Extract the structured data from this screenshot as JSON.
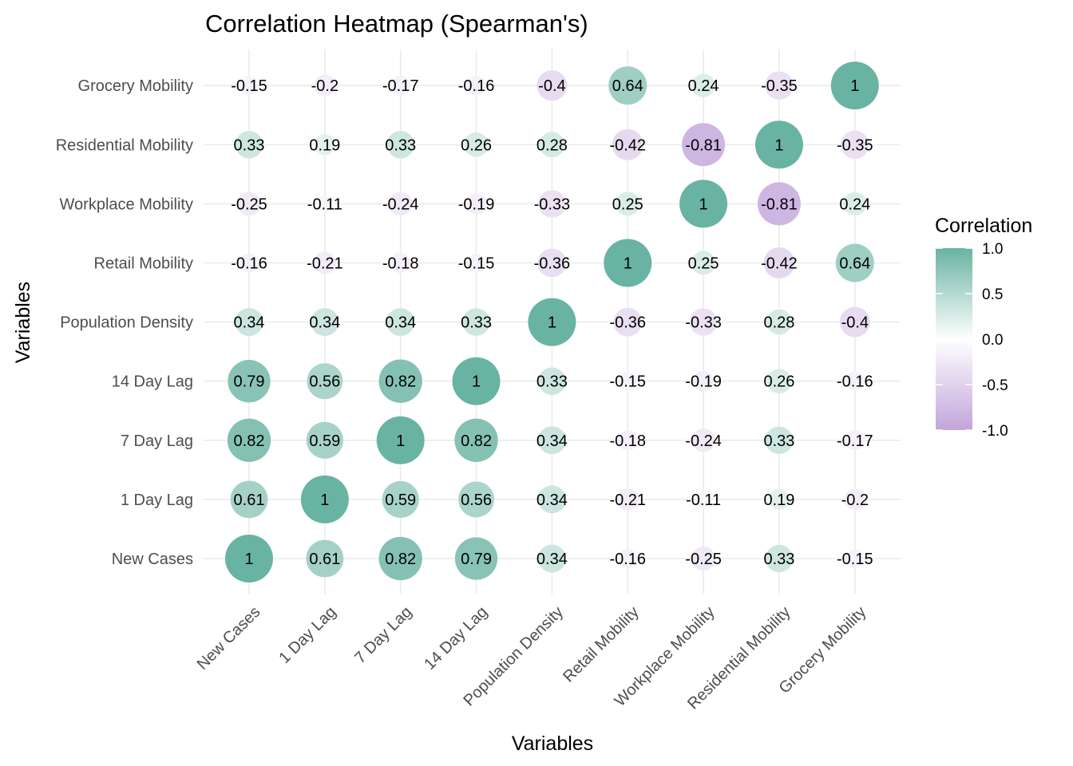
{
  "chart_data": {
    "type": "heatmap",
    "title": "Correlation Heatmap (Spearman's)",
    "xlabel": "Variables",
    "ylabel": "Variables",
    "variables": [
      "New Cases",
      "1 Day Lag",
      "7 Day Lag",
      "14 Day Lag",
      "Population Density",
      "Retail Mobility",
      "Workplace Mobility",
      "Residential Mobility",
      "Grocery Mobility"
    ],
    "matrix": [
      [
        1,
        0.61,
        0.82,
        0.79,
        0.34,
        -0.16,
        -0.25,
        0.33,
        -0.15
      ],
      [
        0.61,
        1,
        0.59,
        0.56,
        0.34,
        -0.21,
        -0.11,
        0.19,
        -0.2
      ],
      [
        0.82,
        0.59,
        1,
        0.82,
        0.34,
        -0.18,
        -0.24,
        0.33,
        -0.17
      ],
      [
        0.79,
        0.56,
        0.82,
        1,
        0.33,
        -0.15,
        -0.19,
        0.26,
        -0.16
      ],
      [
        0.34,
        0.34,
        0.34,
        0.33,
        1,
        -0.36,
        -0.33,
        0.28,
        -0.4
      ],
      [
        -0.16,
        -0.21,
        -0.18,
        -0.15,
        -0.36,
        1,
        0.25,
        -0.42,
        0.64
      ],
      [
        -0.25,
        -0.11,
        -0.24,
        -0.19,
        -0.33,
        0.25,
        1,
        -0.81,
        0.24
      ],
      [
        0.33,
        0.19,
        0.33,
        0.26,
        0.28,
        -0.42,
        -0.81,
        1,
        -0.35
      ],
      [
        -0.15,
        -0.2,
        -0.17,
        -0.16,
        -0.4,
        0.64,
        0.24,
        -0.35,
        1
      ]
    ],
    "legend": {
      "title": "Correlation",
      "ticks": [
        "1.0",
        "0.5",
        "0.0",
        "-0.5",
        "-1.0"
      ],
      "range": [
        -1,
        1
      ],
      "low_color": "#c2a5db",
      "mid_color": "#ffffff",
      "high_color": "#69b3a2",
      "placement": "right"
    },
    "grid": true
  }
}
